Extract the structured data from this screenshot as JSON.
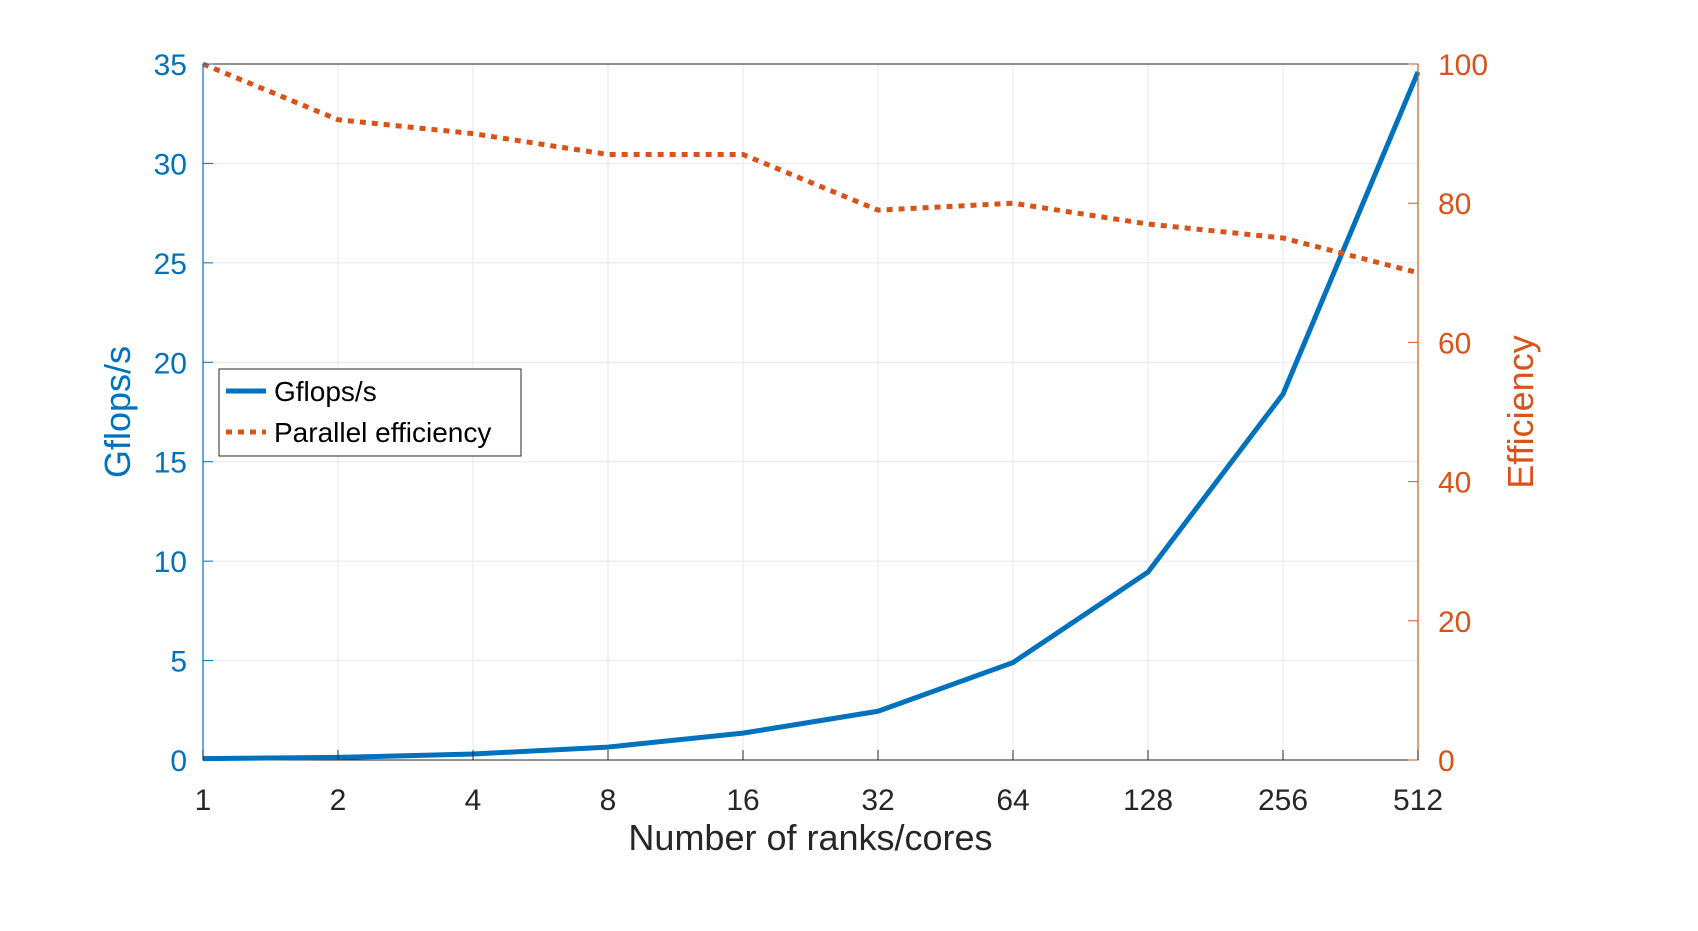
{
  "chart_data": {
    "type": "line",
    "categories": [
      "1",
      "2",
      "4",
      "8",
      "16",
      "32",
      "64",
      "128",
      "256",
      "512"
    ],
    "xlabel": "Number of ranks/cores",
    "ylabel_left": "Gflops/s",
    "ylabel_right": "Efficiency",
    "ylim_left": [
      0,
      35
    ],
    "ylim_right": [
      0,
      100
    ],
    "yticks_left": [
      "0",
      "5",
      "10",
      "15",
      "20",
      "25",
      "30",
      "35"
    ],
    "yticks_right": [
      "0",
      "20",
      "40",
      "60",
      "80",
      "100"
    ],
    "grid": true,
    "legend_position": "center-left",
    "series": [
      {
        "name": "Gflops/s",
        "axis": "left",
        "style": "solid",
        "color": "#0072BD",
        "values": [
          0.07,
          0.13,
          0.3,
          0.65,
          1.35,
          2.45,
          4.9,
          9.45,
          18.4,
          34.6
        ]
      },
      {
        "name": "Parallel efficiency",
        "axis": "right",
        "style": "dotted",
        "color": "#D95319",
        "values": [
          100,
          92,
          90,
          87,
          87,
          79,
          80,
          77,
          75,
          70
        ]
      }
    ]
  }
}
